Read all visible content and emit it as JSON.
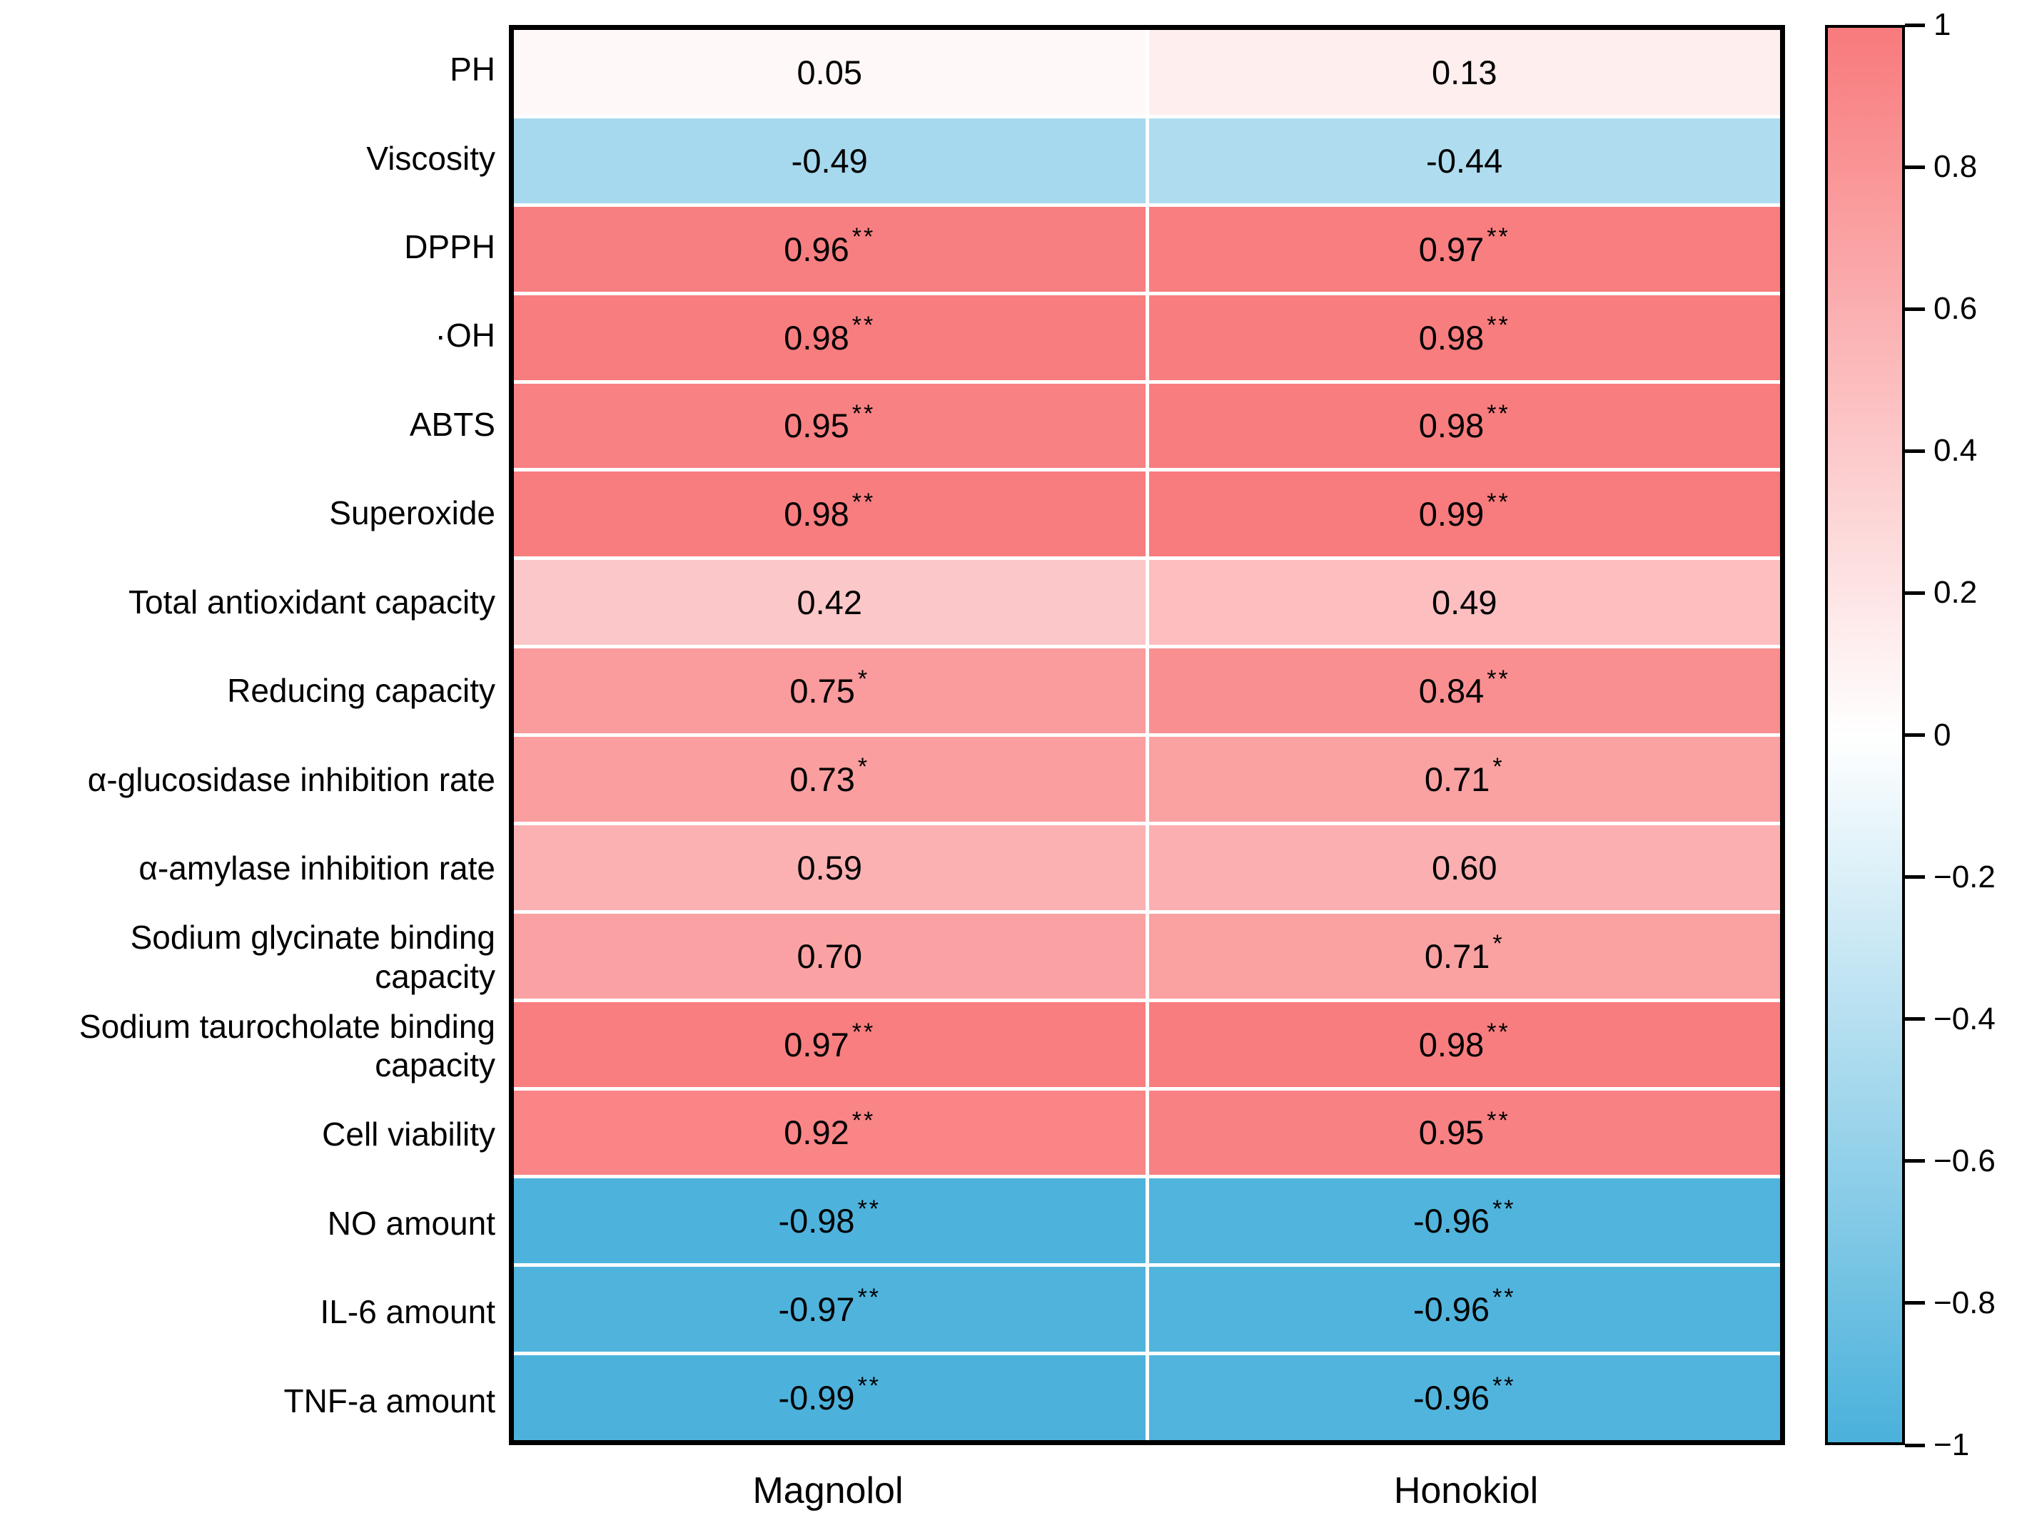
{
  "figure": {
    "background": "#ffffff"
  },
  "chart_data": {
    "type": "heatmap",
    "title": "",
    "xlabel": "",
    "ylabel": "",
    "grid": false,
    "legend_position": "none",
    "columns": [
      "Magnolol",
      "Honokiol"
    ],
    "rows": [
      "PH",
      "Viscosity",
      "DPPH",
      "·OH",
      "ABTS",
      "Superoxide",
      "Total antioxidant capacity",
      "Reducing capacity",
      "α-glucosidase inhibition rate",
      "α-amylase inhibition rate",
      "Sodium glycinate binding\ncapacity",
      "Sodium taurocholate binding\ncapacity",
      "Cell viability",
      "NO amount",
      "IL-6 amount",
      "TNF-a amount"
    ],
    "series": [
      {
        "name": "Magnolol",
        "values": [
          0.05,
          -0.49,
          0.96,
          0.98,
          0.95,
          0.98,
          0.42,
          0.75,
          0.73,
          0.59,
          0.7,
          0.97,
          0.92,
          -0.98,
          -0.97,
          -0.99
        ],
        "display": [
          "0.05",
          "-0.49",
          "0.96",
          "0.98",
          "0.95",
          "0.98",
          "0.42",
          "0.75",
          "0.73",
          "0.59",
          "0.70",
          "0.97",
          "0.92",
          "-0.98",
          "-0.97",
          "-0.99"
        ],
        "significance": [
          "",
          "",
          "**",
          "**",
          "**",
          "**",
          "",
          "*",
          "*",
          "",
          "",
          "**",
          "**",
          "**",
          "**",
          "**"
        ]
      },
      {
        "name": "Honokiol",
        "values": [
          0.13,
          -0.44,
          0.97,
          0.98,
          0.98,
          0.99,
          0.49,
          0.84,
          0.71,
          0.6,
          0.71,
          0.98,
          0.95,
          -0.96,
          -0.96,
          -0.96
        ],
        "display": [
          "0.13",
          "-0.44",
          "0.97",
          "0.98",
          "0.98",
          "0.99",
          "0.49",
          "0.84",
          "0.71",
          "0.60",
          "0.71",
          "0.98",
          "0.95",
          "-0.96",
          "-0.96",
          "-0.96"
        ],
        "significance": [
          "",
          "",
          "**",
          "**",
          "**",
          "**",
          "",
          "**",
          "*",
          "",
          "*",
          "**",
          "**",
          "**",
          "**",
          "**"
        ]
      }
    ],
    "colorbar": {
      "position": "right",
      "vmin": -1,
      "vmax": 1,
      "ticks": [
        "1",
        "0.8",
        "0.6",
        "0.4",
        "0.2",
        "0",
        "−0.2",
        "−0.4",
        "−0.6",
        "−0.8",
        "−1"
      ],
      "tick_values": [
        1,
        0.8,
        0.6,
        0.4,
        0.2,
        0,
        -0.2,
        -0.4,
        -0.6,
        -0.8,
        -1
      ]
    },
    "colormap": {
      "positive_max": "#F87A7C",
      "zero": "#FFFFFF",
      "negative_max": "#4AB1DB"
    },
    "cell_border_color": "#FFFFFF",
    "frame_color": "#000000"
  }
}
